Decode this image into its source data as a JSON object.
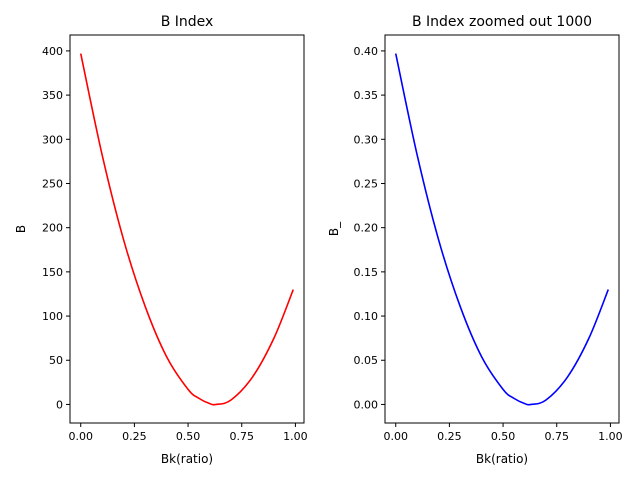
{
  "chart_data": [
    {
      "type": "line",
      "title": "B Index",
      "xlabel": "Bk(ratio)",
      "ylabel": "B",
      "xlim": [
        -0.05,
        1.04
      ],
      "ylim": [
        -21,
        418
      ],
      "xticks": [
        0.0,
        0.25,
        0.5,
        0.75,
        1.0
      ],
      "xtick_labels": [
        "0.00",
        "0.25",
        "0.50",
        "0.75",
        "1.00"
      ],
      "yticks": [
        0,
        50,
        100,
        150,
        200,
        250,
        300,
        350,
        400
      ],
      "ytick_labels": [
        "0",
        "50",
        "100",
        "150",
        "200",
        "250",
        "300",
        "350",
        "400"
      ],
      "grid": false,
      "series": [
        {
          "color": "#ff0000",
          "x": [
            0.0,
            0.1,
            0.2,
            0.3,
            0.4,
            0.5,
            0.55,
            0.6,
            0.63,
            0.7,
            0.8,
            0.9,
            0.99
          ],
          "y": [
            397,
            282,
            186,
            111,
            54,
            17,
            7,
            1,
            0,
            5,
            31,
            75,
            130
          ]
        }
      ]
    },
    {
      "type": "line",
      "title": "B Index zoomed out 1000",
      "xlabel": "Bk(ratio)",
      "ylabel": "B_",
      "xlim": [
        -0.05,
        1.04
      ],
      "ylim": [
        -0.021,
        0.418
      ],
      "xticks": [
        0.0,
        0.25,
        0.5,
        0.75,
        1.0
      ],
      "xtick_labels": [
        "0.00",
        "0.25",
        "0.50",
        "0.75",
        "1.00"
      ],
      "yticks": [
        0.0,
        0.05,
        0.1,
        0.15,
        0.2,
        0.25,
        0.3,
        0.35,
        0.4
      ],
      "ytick_labels": [
        "0.00",
        "0.05",
        "0.10",
        "0.15",
        "0.20",
        "0.25",
        "0.30",
        "0.35",
        "0.40"
      ],
      "grid": false,
      "series": [
        {
          "color": "#0000ff",
          "x": [
            0.0,
            0.1,
            0.2,
            0.3,
            0.4,
            0.5,
            0.55,
            0.6,
            0.63,
            0.7,
            0.8,
            0.9,
            0.99
          ],
          "y": [
            0.397,
            0.282,
            0.186,
            0.111,
            0.054,
            0.017,
            0.007,
            0.001,
            0.0,
            0.005,
            0.031,
            0.075,
            0.13
          ]
        }
      ]
    }
  ]
}
